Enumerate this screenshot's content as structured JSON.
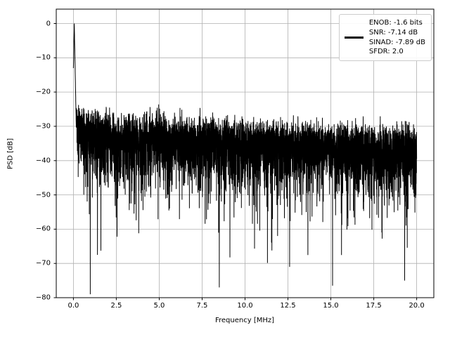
{
  "figure": {
    "background": "#ffffff"
  },
  "chart_data": {
    "type": "line",
    "title": "",
    "xlabel": "Frequency [MHz]",
    "ylabel": "PSD [dB]",
    "xlim": [
      -1.0,
      21.0
    ],
    "ylim": [
      -80,
      4.2
    ],
    "x_ticks": [
      0.0,
      2.5,
      5.0,
      7.5,
      10.0,
      12.5,
      15.0,
      17.5,
      20.0
    ],
    "x_tick_labels": [
      "0.0",
      "2.5",
      "5.0",
      "7.5",
      "10.0",
      "12.5",
      "15.0",
      "17.5",
      "20.0"
    ],
    "y_ticks": [
      0,
      -10,
      -20,
      -30,
      -40,
      -50,
      -60,
      -70,
      -80
    ],
    "y_tick_labels": [
      "0",
      "−10",
      "−20",
      "−30",
      "−40",
      "−50",
      "−60",
      "−70",
      "−80"
    ],
    "grid": true,
    "grid_color": "#b0b0b0",
    "line_color": "#000000",
    "legend": {
      "position": "upper right",
      "lines": [
        "ENOB: -1.6 bits",
        "SNR: -7.14 dB",
        "SINAD: -7.89 dB",
        "SFDR: 2.0"
      ]
    },
    "series": [
      {
        "name": "PSD",
        "description": "Dense noisy PSD trace: fundamental tone spike reaching 0 dB at ~0 MHz; broadband noise band dense between about -48 dB and -27 dB, upper envelope drifting from about -26 dB at 0 MHz to about -31 dB at 20 MHz; sporadic downward spikes reaching about -77 dB.",
        "generator": {
          "seed": 1337,
          "points": 6000,
          "f_start": 0,
          "f_end": 20,
          "floor_start_db": -32,
          "floor_end_db": -36.5,
          "low_freq_bump_db": 3,
          "low_freq_bump_decay_mhz": 0.8,
          "clip_min_db": -79,
          "peak": {
            "freq_mhz": 0.05,
            "level_db": 0,
            "skirt_db_per_mhz": 260
          }
        },
        "notable_dips": [
          {
            "f": 1.4,
            "db": -67.5
          },
          {
            "f": 8.5,
            "db": -77.0
          },
          {
            "f": 11.9,
            "db": -62.0
          },
          {
            "f": 12.6,
            "db": -71.0
          },
          {
            "f": 15.1,
            "db": -76.5
          },
          {
            "f": 19.3,
            "db": -75.0
          }
        ]
      }
    ]
  }
}
